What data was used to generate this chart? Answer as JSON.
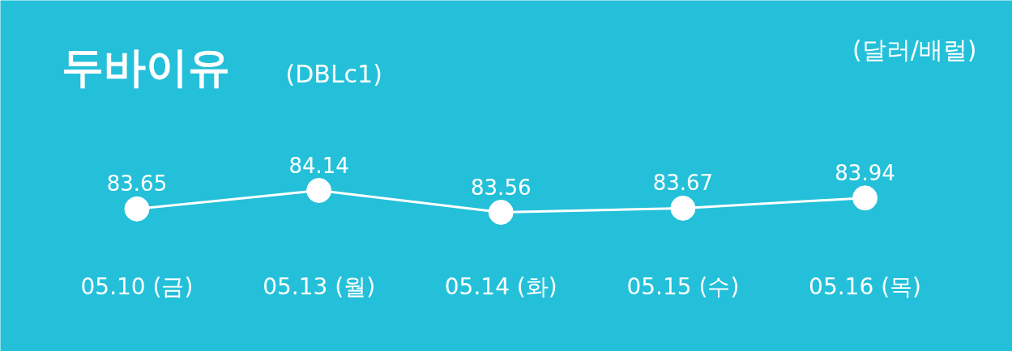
{
  "chart_data": {
    "type": "line",
    "title": "두바이유",
    "subtitle": "(DBLc1)",
    "annotations": [
      "(달러/배럴)"
    ],
    "categories": [
      "05.10 (금)",
      "05.13 (월)",
      "05.14 (화)",
      "05.15 (수)",
      "05.16 (목)"
    ],
    "series": [
      {
        "color": "#ffffff",
        "values": [
          83.65,
          84.14,
          83.56,
          83.67,
          83.94
        ]
      }
    ],
    "data_labels": true,
    "marker": "circle",
    "line_style": "solid",
    "grid": false
  }
}
